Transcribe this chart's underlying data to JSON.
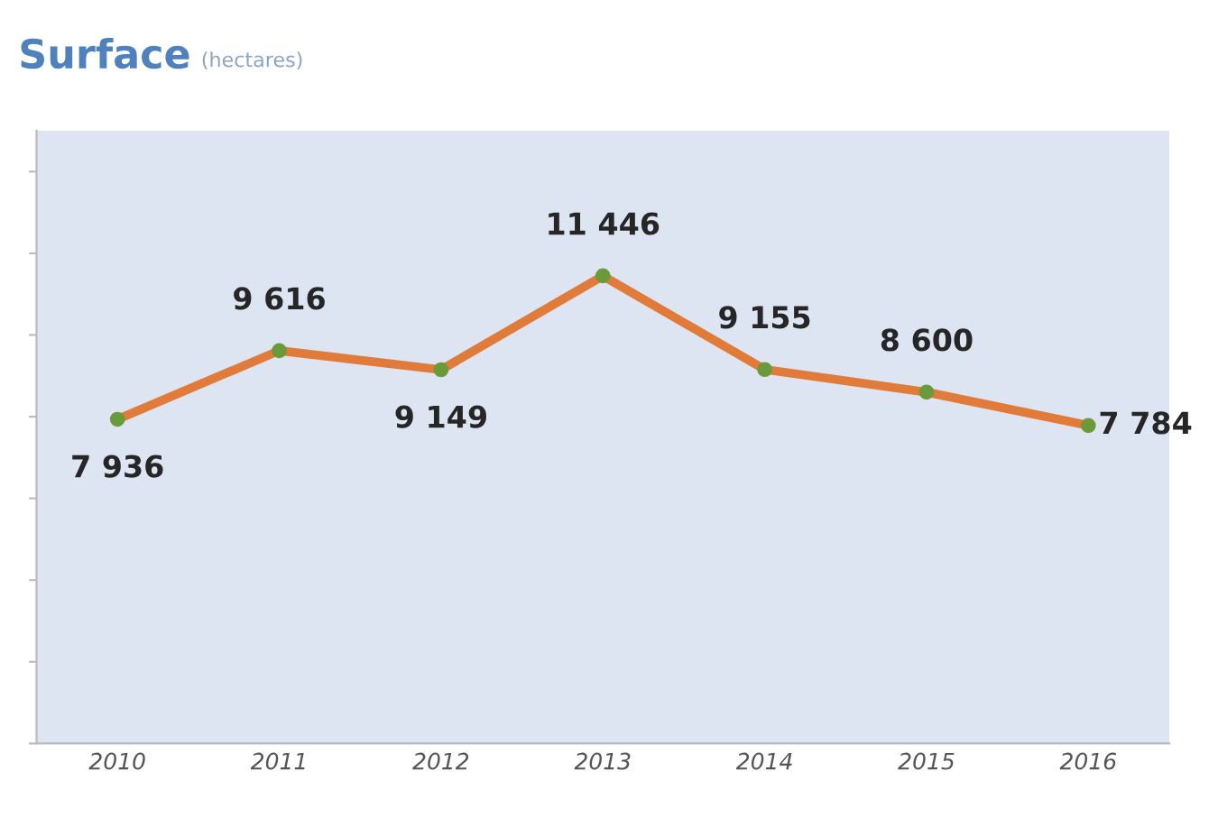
{
  "chart_data": {
    "type": "line",
    "title": "Surface",
    "subtitle": "(hectares)",
    "categories": [
      "2010",
      "2011",
      "2012",
      "2013",
      "2014",
      "2015",
      "2016"
    ],
    "series": [
      {
        "color": "#e07b39",
        "values": [
          7936,
          9616,
          9149,
          11446,
          9155,
          8600,
          7784
        ]
      }
    ],
    "marker": "circle",
    "data_labels": true,
    "ylim": [
      0,
      15000
    ],
    "yticks": [
      {
        "value": 0,
        "label": null
      },
      {
        "value": 2000,
        "label": null
      },
      {
        "value": 4000,
        "label": null
      },
      {
        "value": 6000,
        "label": null
      },
      {
        "value": 8000,
        "label": null
      },
      {
        "value": 10000,
        "label": null
      },
      {
        "value": 12000,
        "label": null
      },
      {
        "value": 14000,
        "label": null
      }
    ],
    "tick_labels": "x",
    "grid": false,
    "legend": false
  }
}
